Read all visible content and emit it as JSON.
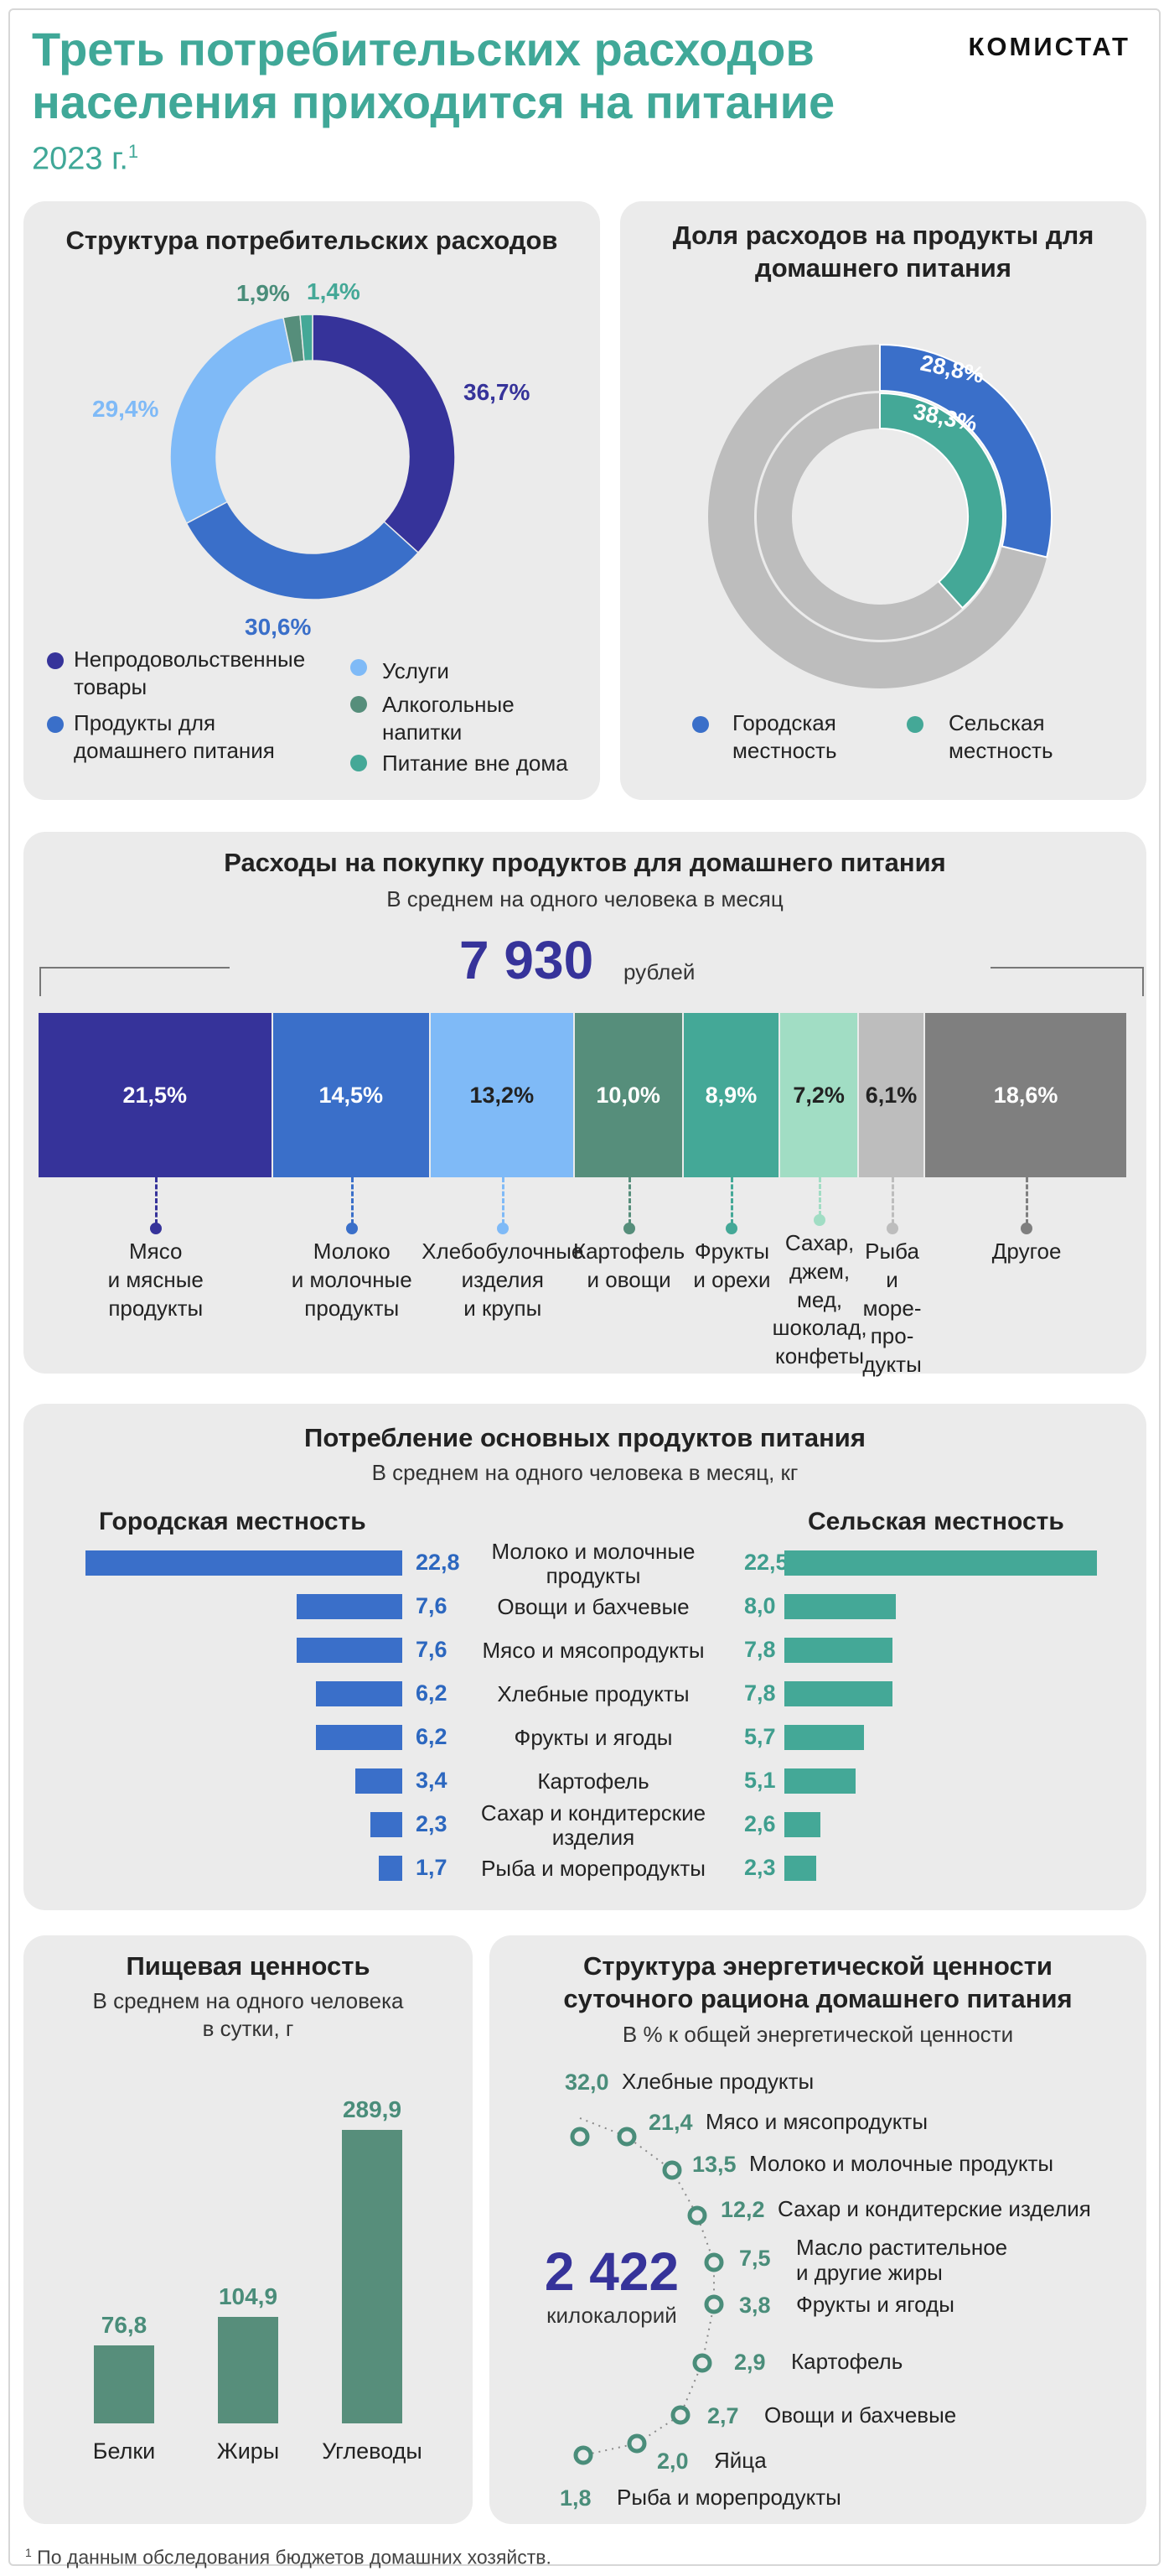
{
  "header": {
    "title_line1": "Треть потребительских расходов",
    "title_line2": "населения приходится на питание",
    "subtitle": "2023 г.",
    "subtitle_note": "1",
    "logo": "КОМИСТАТ"
  },
  "colors": {
    "nonfood": "#36339a",
    "home_food": "#3a6fc9",
    "services": "#7fbaf7",
    "alcohol": "#568e7b",
    "outside": "#44a897",
    "grey": "#bdbdbd",
    "dark_grey": "#7f7f7f",
    "light_mint": "#a1ddc4"
  },
  "chart_data": [
    {
      "type": "pie",
      "title": "Структура потребительских расходов",
      "slices": [
        {
          "name": "Непродовольственные товары",
          "value": 36.7,
          "label": "36,7%"
        },
        {
          "name": "Продукты для домашнего питания",
          "value": 30.6,
          "label": "30,6%"
        },
        {
          "name": "Услуги",
          "value": 29.4,
          "label": "29,4%"
        },
        {
          "name": "Алкогольные напитки",
          "value": 1.9,
          "label": "1,9%"
        },
        {
          "name": "Питание вне дома",
          "value": 1.4,
          "label": "1,4%"
        }
      ],
      "legend": {
        "nonfood": "Непродовольственные товары",
        "home_food": "Продукты для домашнего питания",
        "services": "Услуги",
        "alcohol": "Алкогольные напитки",
        "outside": "Питание вне дома"
      }
    },
    {
      "type": "pie",
      "title": "Доля расходов на продукты для домашнего питания",
      "series": [
        {
          "name": "Городская местность",
          "value": 28.8,
          "label": "28,8%"
        },
        {
          "name": "Сельская местность",
          "value": 38.3,
          "label": "38,3%"
        }
      ],
      "legend": {
        "urban": "Городская местность",
        "rural": "Сельская местность"
      }
    },
    {
      "type": "bar",
      "title": "Расходы на покупку продуктов для домашнего питания",
      "subtitle": "В среднем на одного человека в месяц",
      "total": "7 930",
      "unit": "рублей",
      "categories": [
        "Мясо и мясные продукты",
        "Молоко и молочные продукты",
        "Хлебобулочные изделия и крупы",
        "Картофель и овощи",
        "Фрукты и орехи",
        "Сахар, джем, мед, шоколад, конфеты",
        "Рыба и морепродукты",
        "Другое"
      ],
      "values": [
        21.5,
        14.5,
        13.2,
        10.0,
        8.9,
        7.2,
        6.1,
        18.6
      ],
      "labels": [
        "21,5%",
        "14,5%",
        "13,2%",
        "10,0%",
        "8,9%",
        "7,2%",
        "6,1%",
        "18,6%"
      ],
      "cat_lines": [
        [
          "Мясо",
          "и мясные",
          "продукты"
        ],
        [
          "Молоко",
          "и молочные",
          "продукты"
        ],
        [
          "Хлебобулочные",
          "изделия",
          "и крупы"
        ],
        [
          "Картофель",
          "и овощи"
        ],
        [
          "Фрукты",
          "и орехи"
        ],
        [
          "Сахар,",
          "джем,",
          "мед,",
          "шоколад,",
          "конфеты"
        ],
        [
          "Рыба",
          "и",
          "море-",
          "про-",
          "дукты"
        ],
        [
          "Другое"
        ]
      ]
    },
    {
      "type": "bar",
      "title": "Потребление основных продуктов питания",
      "subtitle": "В среднем на одного человека в месяц, кг",
      "urban_label": "Городская местность",
      "rural_label": "Сельская местность",
      "rows": [
        {
          "name_lines": [
            "Молоко и молочные",
            "продукты"
          ],
          "urban": 22.8,
          "urban_label": "22,8",
          "rural": 22.5,
          "rural_label": "22,5"
        },
        {
          "name_lines": [
            "Овощи и бахчевые"
          ],
          "urban": 7.6,
          "urban_label": "7,6",
          "rural": 8.0,
          "rural_label": "8,0"
        },
        {
          "name_lines": [
            "Мясо и мясопродукты"
          ],
          "urban": 7.6,
          "urban_label": "7,6",
          "rural": 7.8,
          "rural_label": "7,8"
        },
        {
          "name_lines": [
            "Хлебные продукты"
          ],
          "urban": 6.2,
          "urban_label": "6,2",
          "rural": 7.8,
          "rural_label": "7,8"
        },
        {
          "name_lines": [
            "Фрукты и ягоды"
          ],
          "urban": 6.2,
          "urban_label": "6,2",
          "rural": 5.7,
          "rural_label": "5,7"
        },
        {
          "name_lines": [
            "Картофель"
          ],
          "urban": 3.4,
          "urban_label": "3,4",
          "rural": 5.1,
          "rural_label": "5,1"
        },
        {
          "name_lines": [
            "Сахар и кондитерские",
            "изделия"
          ],
          "urban": 2.3,
          "urban_label": "2,3",
          "rural": 2.6,
          "rural_label": "2,6"
        },
        {
          "name_lines": [
            "Рыба и морепродукты"
          ],
          "urban": 1.7,
          "urban_label": "1,7",
          "rural": 2.3,
          "rural_label": "2,3"
        }
      ]
    },
    {
      "type": "bar",
      "title": "Пищевая ценность",
      "subtitle_line1": "В среднем на одного человека",
      "subtitle_line2": "в сутки, г",
      "categories": [
        "Белки",
        "Жиры",
        "Углеводы"
      ],
      "values": [
        76.8,
        104.9,
        289.9
      ],
      "labels": [
        "76,8",
        "104,9",
        "289,9"
      ]
    },
    {
      "type": "scatter",
      "title_line1": "Структура энергетической ценности",
      "title_line2": "суточного рациона домашнего питания",
      "subtitle": "В % к общей энергетической ценности",
      "total": "2 422",
      "total_unit": "килокалорий",
      "items": [
        {
          "name_lines": [
            "Хлебные продукты"
          ],
          "value": 32.0,
          "label": "32,0"
        },
        {
          "name_lines": [
            "Мясо и мясопродукты"
          ],
          "value": 21.4,
          "label": "21,4"
        },
        {
          "name_lines": [
            "Молоко и молочные продукты"
          ],
          "value": 13.5,
          "label": "13,5"
        },
        {
          "name_lines": [
            "Сахар и кондитерские изделия"
          ],
          "value": 12.2,
          "label": "12,2"
        },
        {
          "name_lines": [
            "Масло растительное",
            "и другие жиры"
          ],
          "value": 7.5,
          "label": "7,5"
        },
        {
          "name_lines": [
            "Фрукты и ягоды"
          ],
          "value": 3.8,
          "label": "3,8"
        },
        {
          "name_lines": [
            "Картофель"
          ],
          "value": 2.9,
          "label": "2,9"
        },
        {
          "name_lines": [
            "Овощи и бахчевые"
          ],
          "value": 2.7,
          "label": "2,7"
        },
        {
          "name_lines": [
            "Яйца"
          ],
          "value": 2.0,
          "label": "2,0"
        },
        {
          "name_lines": [
            "Рыба и морепродукты"
          ],
          "value": 1.8,
          "label": "1,8"
        }
      ]
    }
  ],
  "footnote": {
    "mark": "1",
    "text": " По данным обследования бюджетов домашних хозяйств."
  }
}
